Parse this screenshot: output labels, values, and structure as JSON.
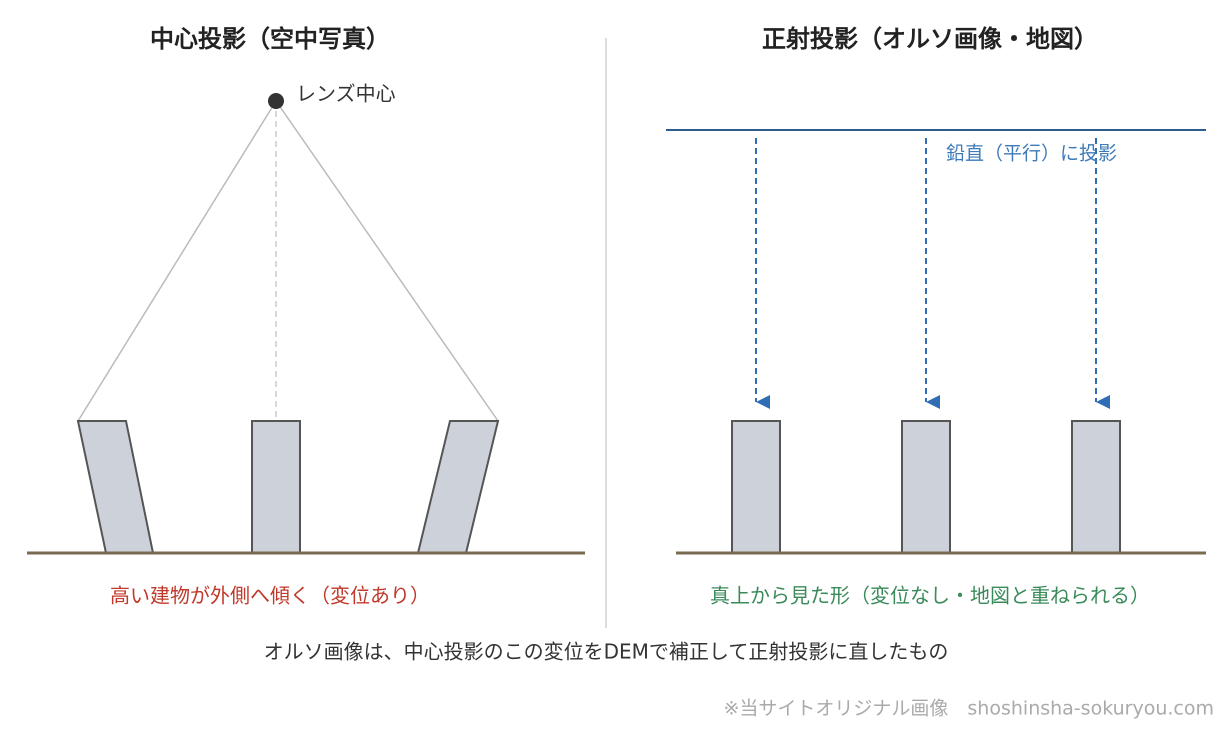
{
  "left_panel": {
    "title": "中心投影（空中写真）",
    "lens_label": "レンズ中心",
    "caption": "高い建物が外側へ傾く（変位あり）"
  },
  "right_panel": {
    "title": "正射投影（オルソ画像・地図）",
    "projection_label": "鉛直（平行）に投影",
    "caption": "真上から見た形（変位なし・地図と重ねられる）"
  },
  "footer": {
    "note": "オルソ画像は、中心投影のこの変位をDEMで補正して正射投影に直したもの",
    "credit": "※当サイトオリジナル画像　shoshinsha-sokuryou.com"
  }
}
